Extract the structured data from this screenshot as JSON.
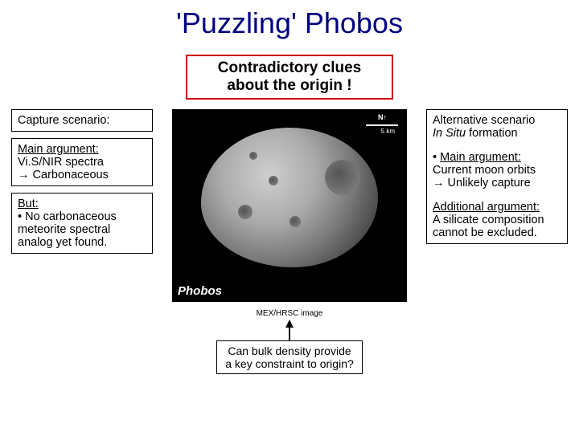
{
  "title": "'Puzzling' Phobos",
  "red_box_l1": "Contradictory clues",
  "red_box_l2": "about the origin !",
  "left": {
    "b1": "Capture scenario:",
    "b2_l1": "Main argument:",
    "b2_l2": "Vi.S/NIR spectra",
    "b2_l3": "→ Carbonaceous",
    "b3_l1": "But:",
    "b3_l2": "• No carbonaceous meteorite spectral analog yet found."
  },
  "right": {
    "l1": "Alternative scenario",
    "l2a": "In Situ",
    "l2b": " formation",
    "l3": "• Main argument:",
    "l4": "Current moon orbits",
    "l5": "→ Unlikely capture",
    "l6": "Additional argument:",
    "l7": "A silicate composition cannot be excluded."
  },
  "image": {
    "label": "Phobos",
    "north": "N↑",
    "scale": "5 km"
  },
  "credit": "MEX/HRSC image",
  "bottom_l1": "Can bulk density provide",
  "bottom_l2": "a key constraint to origin?",
  "colors": {
    "title": "#000080",
    "red_border": "#cc0000",
    "text": "#000000",
    "background": "#ffffff"
  }
}
